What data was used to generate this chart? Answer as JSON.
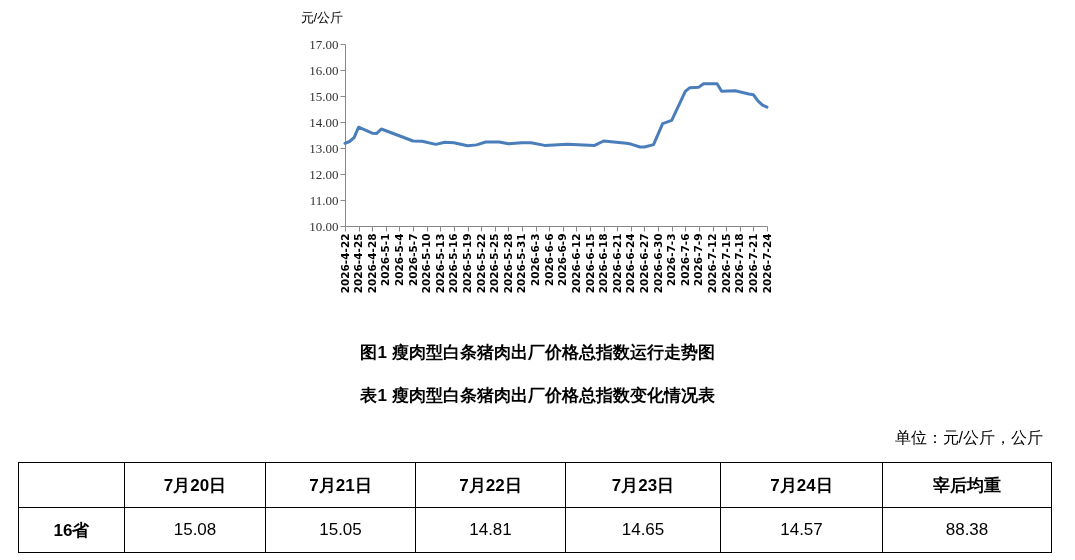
{
  "chart_data": [
    {
      "type": "line",
      "title": "图1 瘦肉型白条猪肉出厂价格总指数运行走势图",
      "ylabel": "元/公斤",
      "x": [
        "2026-04-22",
        "2026-04-23",
        "2026-04-24",
        "2026-04-25",
        "2026-04-28",
        "2026-04-29",
        "2026-04-30",
        "2026-05-07",
        "2026-05-09",
        "2026-05-12",
        "2026-05-14",
        "2026-05-16",
        "2026-05-19",
        "2026-05-21",
        "2026-05-23",
        "2026-05-26",
        "2026-05-28",
        "2026-05-31",
        "2026-06-02",
        "2026-06-05",
        "2026-06-10",
        "2026-06-16",
        "2026-06-18",
        "2026-06-23",
        "2026-06-24",
        "2026-06-26",
        "2026-06-27",
        "2026-06-29",
        "2026-07-01",
        "2026-07-03",
        "2026-07-06",
        "2026-07-07",
        "2026-07-09",
        "2026-07-10",
        "2026-07-13",
        "2026-07-14",
        "2026-07-17",
        "2026-07-20",
        "2026-07-21",
        "2026-07-22",
        "2026-07-23",
        "2026-07-24"
      ],
      "series": [
        {
          "color": "#4a7ebb",
          "values": [
            13.18,
            13.25,
            13.4,
            13.8,
            13.57,
            13.56,
            13.73,
            13.27,
            13.26,
            13.14,
            13.22,
            13.2,
            13.09,
            13.12,
            13.23,
            13.23,
            13.16,
            13.2,
            13.2,
            13.1,
            13.14,
            13.1,
            13.27,
            13.18,
            13.15,
            13.04,
            13.04,
            13.13,
            13.94,
            14.06,
            15.18,
            15.32,
            15.34,
            15.47,
            15.47,
            15.18,
            15.2,
            15.08,
            15.05,
            14.81,
            14.65,
            14.57
          ]
        }
      ],
      "xlim": [
        "2026-04-22",
        "2026-07-24"
      ],
      "ylim": [
        10,
        17
      ],
      "yticks": [
        {
          "value": 10,
          "label": "10.00"
        },
        {
          "value": 11,
          "label": "11.00"
        },
        {
          "value": 12,
          "label": "12.00"
        },
        {
          "value": 13,
          "label": "13.00"
        },
        {
          "value": 14,
          "label": "14.00"
        },
        {
          "value": 15,
          "label": "15.00"
        },
        {
          "value": 16,
          "label": "16.00"
        },
        {
          "value": 17,
          "label": "17.00"
        }
      ],
      "xticks": [
        {
          "value": "2026-04-22",
          "label": "2026-4-22"
        },
        {
          "value": "2026-04-25",
          "label": "2026-4-25"
        },
        {
          "value": "2026-04-28",
          "label": "2026-4-28"
        },
        {
          "value": "2026-05-01",
          "label": "2026-5-1"
        },
        {
          "value": "2026-05-04",
          "label": "2026-5-4"
        },
        {
          "value": "2026-05-07",
          "label": "2026-5-7"
        },
        {
          "value": "2026-05-10",
          "label": "2026-5-10"
        },
        {
          "value": "2026-05-13",
          "label": "2026-5-13"
        },
        {
          "value": "2026-05-16",
          "label": "2026-5-16"
        },
        {
          "value": "2026-05-19",
          "label": "2026-5-19"
        },
        {
          "value": "2026-05-22",
          "label": "2026-5-22"
        },
        {
          "value": "2026-05-25",
          "label": "2026-5-25"
        },
        {
          "value": "2026-05-28",
          "label": "2026-5-28"
        },
        {
          "value": "2026-05-31",
          "label": "2026-5-31"
        },
        {
          "value": "2026-06-03",
          "label": "2026-6-3"
        },
        {
          "value": "2026-06-06",
          "label": "2026-6-6"
        },
        {
          "value": "2026-06-09",
          "label": "2026-6-9"
        },
        {
          "value": "2026-06-12",
          "label": "2026-6-12"
        },
        {
          "value": "2026-06-15",
          "label": "2026-6-15"
        },
        {
          "value": "2026-06-18",
          "label": "2026-6-18"
        },
        {
          "value": "2026-06-21",
          "label": "2026-6-21"
        },
        {
          "value": "2026-06-24",
          "label": "2026-6-24"
        },
        {
          "value": "2026-06-27",
          "label": "2026-6-27"
        },
        {
          "value": "2026-06-30",
          "label": "2026-6-30"
        },
        {
          "value": "2026-07-03",
          "label": "2026-7-3"
        },
        {
          "value": "2026-07-06",
          "label": "2026-7-6"
        },
        {
          "value": "2026-07-09",
          "label": "2026-7-9"
        },
        {
          "value": "2026-07-12",
          "label": "2026-7-12"
        },
        {
          "value": "2026-07-15",
          "label": "2026-7-15"
        },
        {
          "value": "2026-07-18",
          "label": "2026-7-18"
        },
        {
          "value": "2026-07-21",
          "label": "2026-7-21"
        },
        {
          "value": "2026-07-24",
          "label": "2026-7-24"
        }
      ],
      "grid": false,
      "marker": "none",
      "line_style": "solid"
    },
    {
      "type": "other",
      "title": "表1 瘦肉型白条猪肉出厂价格总指数变化情况表",
      "annotations": [
        "单位：元/公斤，公斤"
      ],
      "categories": [
        "7月20日",
        "7月21日",
        "7月22日",
        "7月23日",
        "7月24日",
        "宰后均重"
      ],
      "y_categories": [
        "16省"
      ],
      "values": [
        15.08,
        15.05,
        14.81,
        14.65,
        14.57,
        88.38
      ],
      "data_labels": true
    }
  ]
}
